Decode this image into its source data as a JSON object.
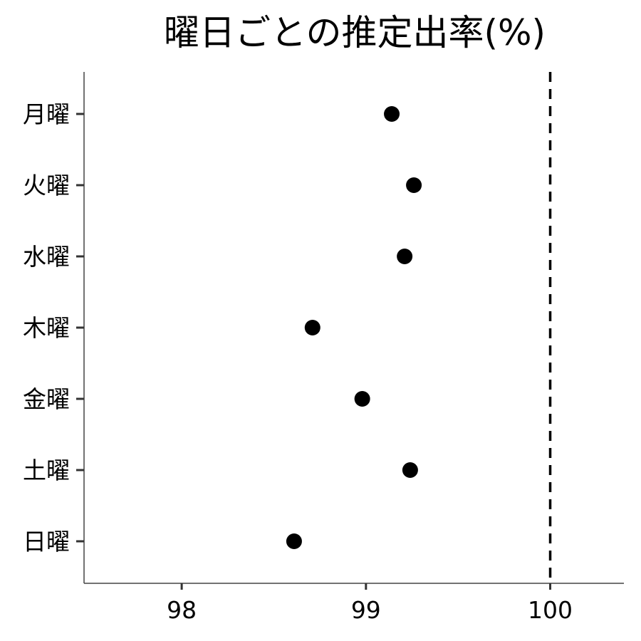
{
  "chart_data": {
    "type": "scatter",
    "title": "曜日ごとの推定出率(%)",
    "xlabel": "",
    "ylabel": "",
    "categories": [
      "月曜",
      "火曜",
      "水曜",
      "木曜",
      "金曜",
      "土曜",
      "日曜"
    ],
    "values": [
      99.14,
      99.26,
      99.21,
      98.71,
      98.98,
      99.24,
      98.61
    ],
    "xlim": [
      97.47,
      100.4
    ],
    "x_ticks": [
      98,
      99,
      100
    ],
    "x_tick_labels": [
      "98",
      "99",
      "100"
    ],
    "reference_line": {
      "x": 100,
      "style": "dashed",
      "color": "#000000"
    },
    "point_color": "#000000",
    "grid": false,
    "legend": "none"
  }
}
